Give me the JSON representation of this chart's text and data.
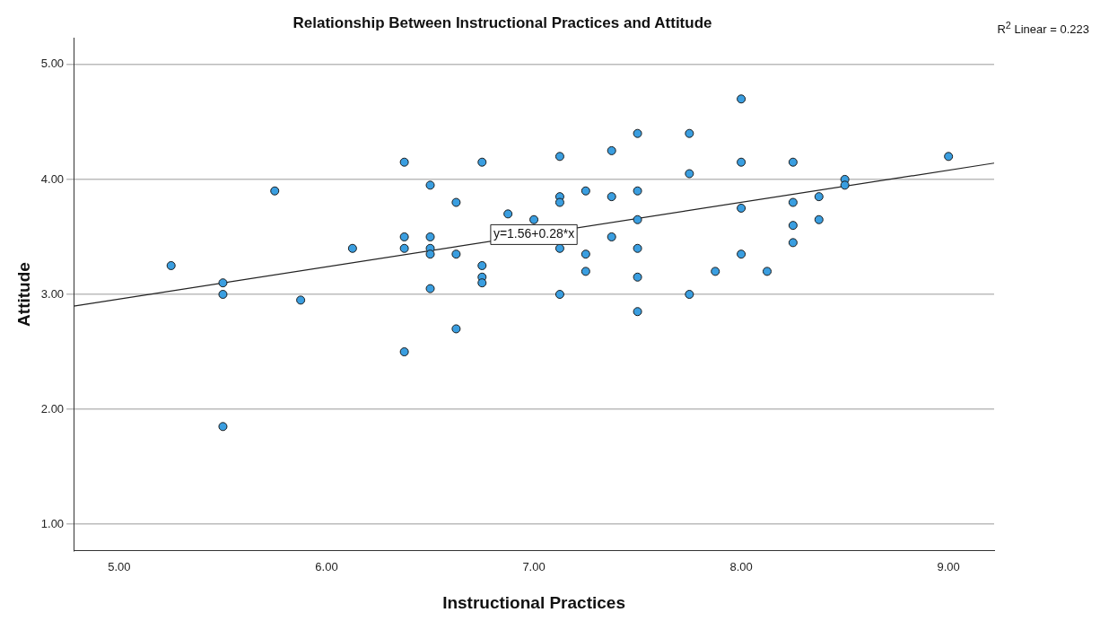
{
  "chart_data": {
    "type": "scatter",
    "title": "Relationship Between Instructional Practices and Attitude",
    "xlabel": "Instructional Practices",
    "ylabel": "Attitude",
    "xlim": [
      4.78,
      9.22
    ],
    "ylim": [
      0.77,
      5.23
    ],
    "xticks": [
      {
        "value": 5,
        "label": "5.00"
      },
      {
        "value": 6,
        "label": "6.00"
      },
      {
        "value": 7,
        "label": "7.00"
      },
      {
        "value": 8,
        "label": "8.00"
      },
      {
        "value": 9,
        "label": "9.00"
      }
    ],
    "yticks": [
      {
        "value": 1,
        "label": "1.00"
      },
      {
        "value": 2,
        "label": "2.00"
      },
      {
        "value": 3,
        "label": "3.00"
      },
      {
        "value": 4,
        "label": "4.00"
      },
      {
        "value": 5,
        "label": "5.00"
      }
    ],
    "grid": "y",
    "legend": false,
    "series": [
      {
        "color": "#3a9ee0",
        "marker": "circle",
        "x": [
          5.25,
          5.5,
          5.5,
          5.5,
          5.75,
          5.875,
          6.125,
          6.375,
          6.375,
          6.375,
          6.375,
          6.5,
          6.5,
          6.5,
          6.5,
          6.5,
          6.625,
          6.625,
          6.625,
          6.75,
          6.75,
          6.75,
          6.75,
          6.875,
          7.0,
          7.125,
          7.125,
          7.125,
          7.125,
          7.125,
          7.25,
          7.25,
          7.25,
          7.375,
          7.375,
          7.375,
          7.5,
          7.5,
          7.5,
          7.5,
          7.5,
          7.5,
          7.75,
          7.75,
          7.75,
          7.875,
          8.0,
          8.0,
          8.0,
          8.0,
          8.125,
          8.25,
          8.25,
          8.25,
          8.25,
          8.375,
          8.375,
          8.5,
          8.5,
          9.0
        ],
        "values": [
          3.25,
          3.1,
          3.0,
          1.85,
          3.9,
          2.95,
          3.4,
          4.15,
          3.5,
          3.4,
          2.5,
          3.95,
          3.5,
          3.4,
          3.35,
          3.05,
          3.8,
          3.35,
          2.7,
          4.15,
          3.25,
          3.15,
          3.1,
          3.7,
          3.65,
          4.2,
          3.85,
          3.8,
          3.4,
          3.0,
          3.9,
          3.35,
          3.2,
          4.25,
          3.85,
          3.5,
          4.4,
          3.9,
          3.65,
          3.4,
          3.15,
          2.85,
          4.4,
          4.05,
          3.0,
          3.2,
          4.7,
          4.15,
          3.75,
          3.35,
          3.2,
          4.15,
          3.8,
          3.6,
          3.45,
          3.85,
          3.65,
          4.0,
          3.95,
          4.2
        ]
      },
      {
        "type": "line",
        "color": "#222222",
        "marker": "none",
        "line_style": "solid",
        "x": [
          4.78,
          9.22
        ],
        "values": [
          2.898,
          4.142
        ]
      }
    ],
    "annotations": [
      {
        "text": "y=1.56+0.28*x",
        "x": 7.0,
        "y": 3.52
      },
      "R$^{2}$ Linear = 0.223"
    ]
  }
}
